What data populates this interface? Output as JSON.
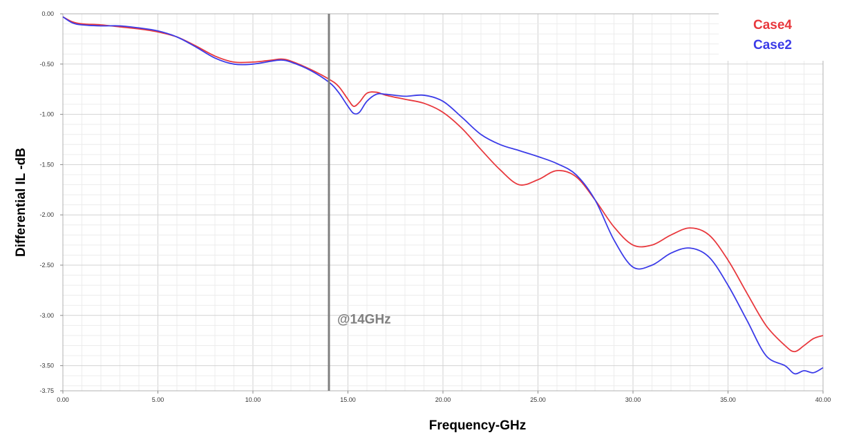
{
  "chart_data": {
    "type": "line",
    "xlabel": "Frequency-GHz",
    "ylabel": "Differential IL -dB",
    "xlim": [
      0,
      40
    ],
    "ylim": [
      -3.75,
      0
    ],
    "x_ticks": [
      "0.00",
      "5.00",
      "10.00",
      "15.00",
      "20.00",
      "25.00",
      "30.00",
      "35.00",
      "40.00"
    ],
    "y_ticks": [
      "0.00",
      "-0.50",
      "-1.00",
      "-1.50",
      "-2.00",
      "-2.50",
      "-3.00",
      "-3.50",
      "-3.75"
    ],
    "grid": true,
    "legend_position": "top-right",
    "marker": {
      "x": 14,
      "label": "@14GHz",
      "color": "#7f7f7f"
    },
    "series": [
      {
        "name": "Case4",
        "color": "#e8383d",
        "x": [
          0,
          0.5,
          1,
          2,
          3,
          4,
          5,
          6,
          7,
          8,
          9,
          10,
          11,
          11.5,
          12,
          13,
          14,
          14.5,
          15,
          15.3,
          15.6,
          16,
          16.5,
          17,
          18,
          19,
          20,
          21,
          22,
          23,
          24,
          25,
          26,
          27,
          28,
          29,
          30,
          31,
          32,
          33,
          34,
          35,
          36,
          37,
          38,
          38.5,
          39,
          39.5,
          40
        ],
        "values": [
          -0.03,
          -0.08,
          -0.1,
          -0.11,
          -0.13,
          -0.15,
          -0.18,
          -0.23,
          -0.32,
          -0.42,
          -0.48,
          -0.48,
          -0.46,
          -0.45,
          -0.47,
          -0.55,
          -0.65,
          -0.72,
          -0.85,
          -0.92,
          -0.88,
          -0.79,
          -0.78,
          -0.81,
          -0.85,
          -0.89,
          -0.98,
          -1.14,
          -1.35,
          -1.55,
          -1.7,
          -1.65,
          -1.56,
          -1.62,
          -1.85,
          -2.12,
          -2.3,
          -2.3,
          -2.2,
          -2.13,
          -2.2,
          -2.45,
          -2.78,
          -3.1,
          -3.3,
          -3.36,
          -3.3,
          -3.23,
          -3.2
        ]
      },
      {
        "name": "Case2",
        "color": "#3b3be8",
        "x": [
          0,
          0.5,
          1,
          2,
          3,
          4,
          5,
          6,
          7,
          8,
          9,
          10,
          11,
          11.5,
          12,
          13,
          14,
          14.5,
          15,
          15.3,
          15.6,
          16,
          16.5,
          17,
          18,
          19,
          20,
          21,
          22,
          23,
          24,
          25,
          26,
          27,
          28,
          29,
          30,
          31,
          32,
          33,
          34,
          35,
          36,
          37,
          38,
          38.5,
          39,
          39.5,
          40
        ],
        "values": [
          -0.03,
          -0.09,
          -0.11,
          -0.12,
          -0.12,
          -0.14,
          -0.17,
          -0.23,
          -0.33,
          -0.44,
          -0.5,
          -0.5,
          -0.47,
          -0.46,
          -0.48,
          -0.56,
          -0.68,
          -0.78,
          -0.92,
          -0.99,
          -0.98,
          -0.87,
          -0.8,
          -0.8,
          -0.82,
          -0.81,
          -0.87,
          -1.03,
          -1.2,
          -1.3,
          -1.36,
          -1.42,
          -1.49,
          -1.6,
          -1.85,
          -2.25,
          -2.52,
          -2.5,
          -2.38,
          -2.33,
          -2.42,
          -2.7,
          -3.05,
          -3.4,
          -3.5,
          -3.58,
          -3.55,
          -3.57,
          -3.52
        ]
      }
    ]
  }
}
